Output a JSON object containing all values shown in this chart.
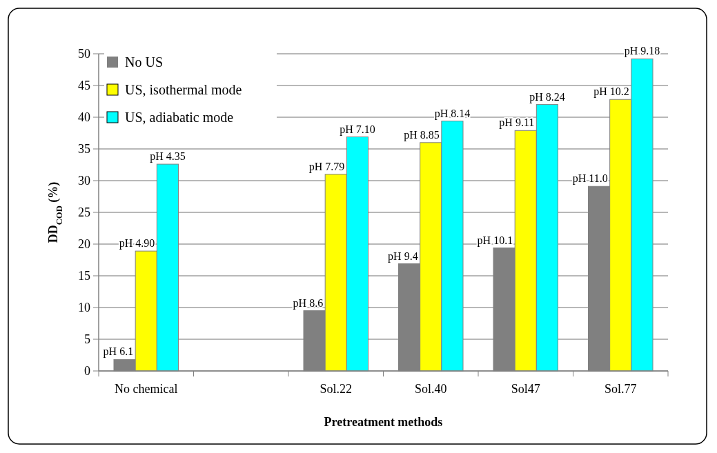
{
  "chart_data": {
    "type": "bar",
    "xlabel": "Pretreatment methods",
    "ylabel": "DD$_{COD}$ (%)",
    "categories": [
      "No chemical",
      null,
      "Sol.22",
      "Sol.40",
      "Sol47",
      "Sol.77"
    ],
    "series": [
      {
        "name": "No US",
        "color": "#808080",
        "values": [
          1.8,
          null,
          9.5,
          16.9,
          19.4,
          29.1
        ],
        "value_labels": [
          "pH 6.1",
          null,
          "pH 8.6",
          "pH 9.4",
          "pH 10.1",
          "pH 11.0"
        ]
      },
      {
        "name": "US, isothermal mode",
        "color": "#ffff00",
        "values": [
          18.9,
          null,
          31.0,
          36.0,
          37.9,
          42.8
        ],
        "value_labels": [
          "pH 4.90",
          null,
          "pH 7.79",
          "pH 8.85",
          "pH 9.11",
          "pH 10.2"
        ]
      },
      {
        "name": "US, adiabatic mode",
        "color": "#00ffff",
        "values": [
          32.6,
          null,
          36.9,
          39.4,
          42.0,
          49.2
        ],
        "value_labels": [
          "pH 4.35",
          null,
          "pH 7.10",
          "pH 8.14",
          "pH 8.24",
          "pH 9.18"
        ]
      }
    ],
    "ylim": [
      0,
      50
    ],
    "yticks": [
      0,
      5,
      10,
      15,
      20,
      25,
      30,
      35,
      40,
      45,
      50
    ],
    "grid": "y",
    "legend": "top left"
  }
}
